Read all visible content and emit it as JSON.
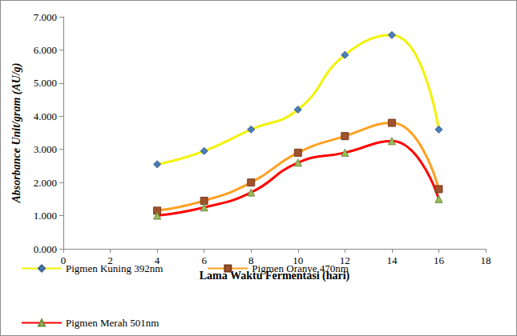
{
  "chart_data": {
    "type": "line",
    "x_label": "Lama Waktu Fermentasi (hari)",
    "y_label": "Absorbance Unit/gram (AU/g)",
    "x": [
      4,
      6,
      8,
      10,
      12,
      14,
      16
    ],
    "series": [
      {
        "name": "Pigmen Kuning 392nm",
        "color": "#f2f200",
        "marker": "diamond",
        "values": [
          2.55,
          2.95,
          3.6,
          4.2,
          5.85,
          6.45,
          3.6
        ]
      },
      {
        "name": "Pigmen Oranye 470nm",
        "color": "#ffa020",
        "marker": "square",
        "values": [
          1.15,
          1.45,
          2.0,
          2.9,
          3.4,
          3.8,
          1.8
        ]
      },
      {
        "name": "Pigmen Merah 501nm",
        "color": "#ff0000",
        "marker": "triangle",
        "values": [
          1.0,
          1.25,
          1.7,
          2.6,
          2.9,
          3.25,
          1.5
        ]
      }
    ],
    "xlim": [
      0,
      18
    ],
    "xticks": [
      0,
      2,
      4,
      6,
      8,
      10,
      12,
      14,
      16,
      18
    ],
    "ylim": [
      0,
      7
    ],
    "yticks": [
      {
        "value": 0,
        "label": "0.000"
      },
      {
        "value": 1,
        "label": "1.000"
      },
      {
        "value": 2,
        "label": "2.000"
      },
      {
        "value": 3,
        "label": "3.000"
      },
      {
        "value": 4,
        "label": "4.000"
      },
      {
        "value": 5,
        "label": "5.000"
      },
      {
        "value": 6,
        "label": "6.000"
      },
      {
        "value": 7,
        "label": "7.000"
      }
    ],
    "grid": false,
    "legend": "bottom-left"
  }
}
